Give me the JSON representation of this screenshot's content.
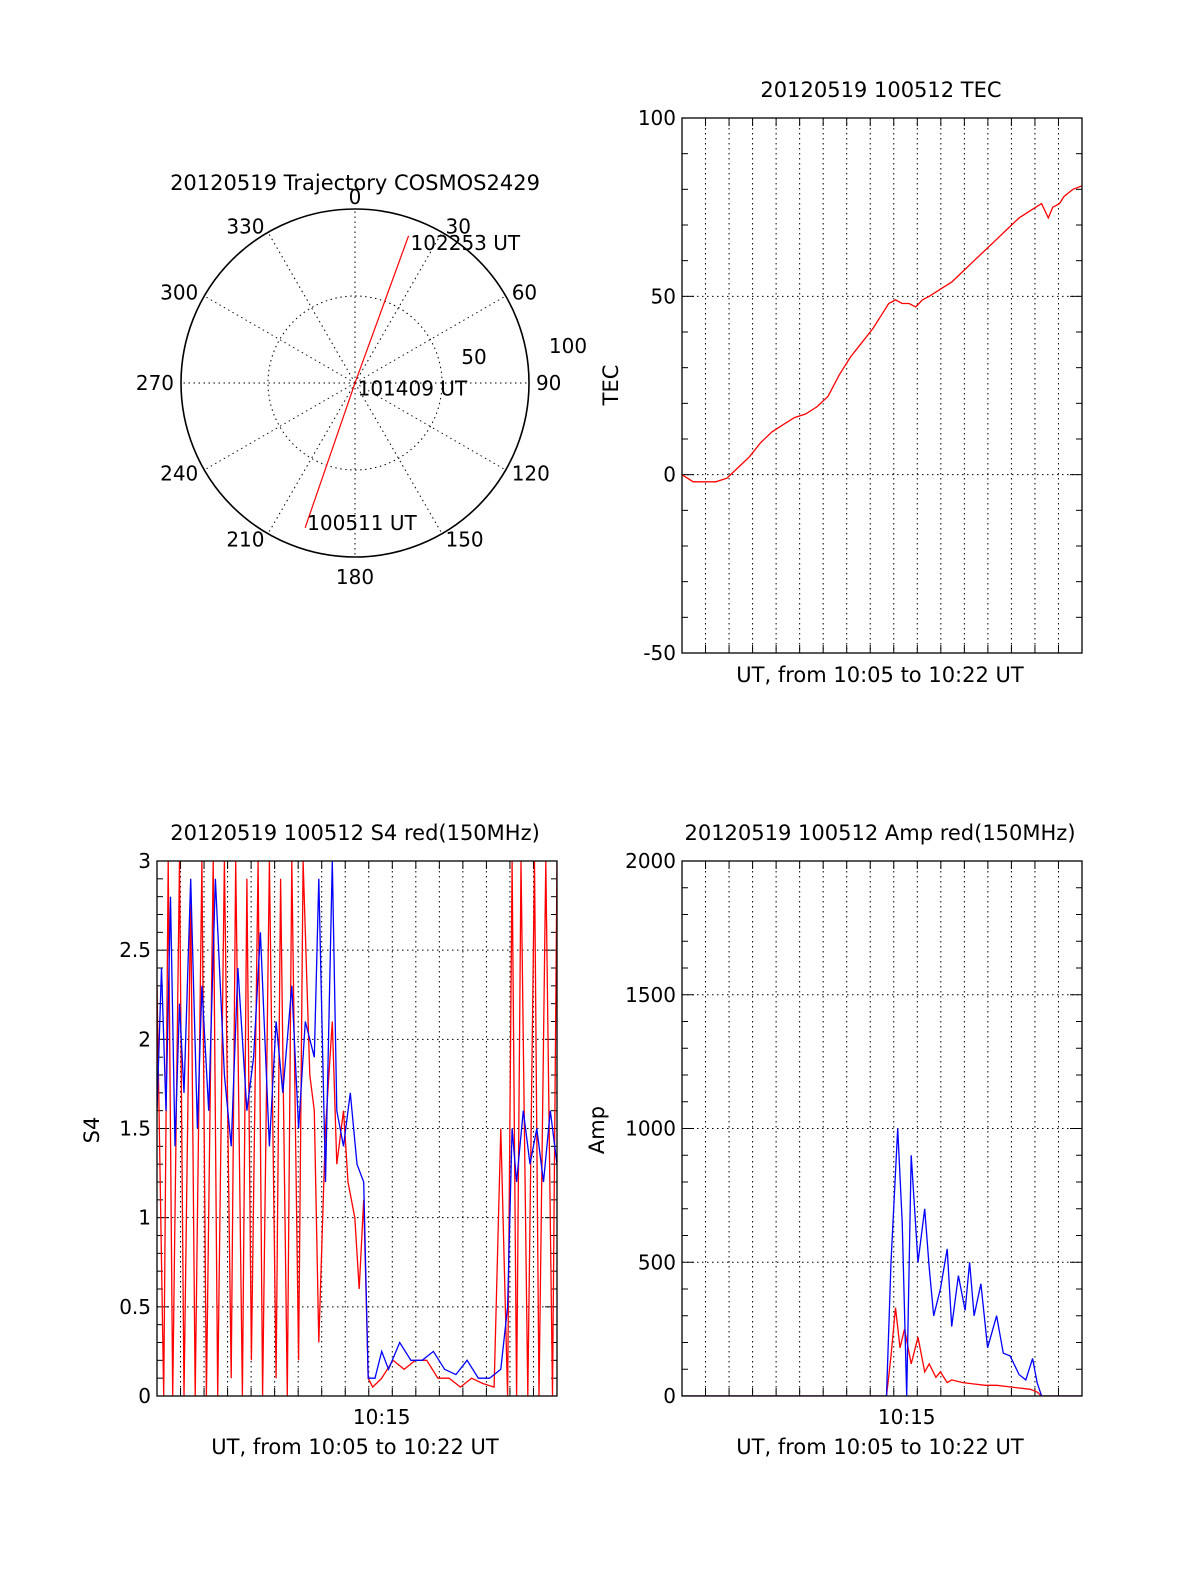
{
  "colors": {
    "red": "#ff0000",
    "blue": "#0000ff",
    "axis": "#000000"
  },
  "chart_data": [
    {
      "id": "trajectory",
      "type": "scatter",
      "title": "20120519 Trajectory COSMOS2429",
      "coordinate_system": "polar",
      "azimuth_labels": [
        "0",
        "30",
        "60",
        "90",
        "120",
        "150",
        "180",
        "210",
        "240",
        "270",
        "300",
        "330"
      ],
      "radius_labels": [
        "50",
        "100"
      ],
      "rlim": [
        0,
        100
      ],
      "grid": true,
      "series": [
        {
          "color": "#ff0000",
          "points": [
            {
              "az": 199,
              "r": 88,
              "label": "100511 UT"
            },
            {
              "az": 20,
              "r": 1,
              "label": "101409 UT"
            },
            {
              "az": 20,
              "r": 90,
              "label": "102253 UT"
            }
          ]
        }
      ]
    },
    {
      "id": "tec",
      "type": "line",
      "title": "20120519 100512 TEC",
      "xlabel": "UT, from 10:05 to 10:22 UT",
      "ylabel": "TEC",
      "xlim": [
        0,
        17.8
      ],
      "ylim": [
        -50,
        100
      ],
      "yticks": [
        "100",
        "50",
        "0",
        "-50"
      ],
      "xticks": [],
      "grid": true,
      "series": [
        {
          "color": "#ff0000",
          "x": [
            0,
            0.5,
            1,
            1.5,
            2,
            2.5,
            3,
            3.5,
            4,
            4.5,
            5,
            5.5,
            6,
            6.5,
            7,
            7.5,
            8,
            8.5,
            8.9,
            9.2,
            9.5,
            9.8,
            10.1,
            10.4,
            10.7,
            11,
            11.5,
            12,
            12.5,
            13,
            13.5,
            14,
            14.5,
            15,
            15.5,
            16,
            16.3,
            16.5,
            16.8,
            17,
            17.4,
            17.8
          ],
          "y": [
            0,
            -2,
            -2,
            -2,
            -1,
            2,
            5,
            9,
            12,
            14,
            16,
            17,
            19,
            22,
            28,
            33,
            37,
            41,
            45,
            48,
            49,
            48,
            48,
            47,
            49,
            50,
            52,
            54,
            57,
            60,
            63,
            66,
            69,
            72,
            74,
            76,
            72,
            75,
            76,
            78,
            80,
            81
          ]
        }
      ]
    },
    {
      "id": "s4",
      "type": "line",
      "title": "20120519 100512 S4 red(150MHz)",
      "xlabel": "UT, from 10:05 to 10:22 UT",
      "ylabel": "S4",
      "xlim": [
        0,
        17.8
      ],
      "ylim": [
        0,
        3
      ],
      "yticks": [
        "3",
        "2.5",
        "2",
        "1.5",
        "1",
        "0.5",
        "0"
      ],
      "xticks": [
        {
          "x": 10,
          "label": "10:15"
        }
      ],
      "grid": true,
      "series": [
        {
          "color": "#ff0000",
          "x": [
            0,
            0.3,
            0.5,
            0.7,
            1,
            1.2,
            1.5,
            1.7,
            2,
            2.2,
            2.5,
            2.7,
            3,
            3.3,
            3.5,
            3.8,
            4,
            4.2,
            4.5,
            4.7,
            5,
            5.3,
            5.5,
            5.8,
            6,
            6.3,
            6.5,
            6.8,
            7,
            7.2,
            7.5,
            7.8,
            8,
            8.3,
            8.5,
            8.8,
            9,
            9.2,
            9.4,
            9.6,
            10,
            10.5,
            11,
            11.5,
            12,
            12.5,
            13,
            13.5,
            14,
            14.5,
            15,
            15.3,
            15.6,
            15.8,
            16,
            16.2,
            16.5,
            16.8,
            17,
            17.3,
            17.6,
            17.8
          ],
          "y": [
            2.3,
            0,
            3,
            0,
            3,
            0,
            2.8,
            0,
            3,
            0,
            3,
            0,
            3,
            0.1,
            3,
            0,
            2.9,
            0.2,
            3,
            0,
            3,
            0.1,
            2.9,
            0,
            3,
            0.2,
            3,
            1.8,
            1.6,
            0.3,
            1.5,
            2.1,
            1.3,
            1.6,
            1.2,
            1.0,
            0.6,
            1.1,
            0.1,
            0.05,
            0.1,
            0.2,
            0.15,
            0.2,
            0.2,
            0.1,
            0.1,
            0.05,
            0.1,
            0.07,
            0.05,
            1.5,
            0,
            3,
            0,
            3,
            0,
            3,
            0,
            3,
            0,
            3
          ]
        },
        {
          "color": "#0000ff",
          "x": [
            0,
            0.2,
            0.4,
            0.6,
            0.8,
            1,
            1.2,
            1.5,
            1.8,
            2,
            2.3,
            2.6,
            3,
            3.3,
            3.6,
            4,
            4.3,
            4.6,
            5,
            5.3,
            5.6,
            6,
            6.3,
            6.6,
            7,
            7.2,
            7.5,
            7.8,
            8,
            8.3,
            8.6,
            8.9,
            9.2,
            9.4,
            9.7,
            10,
            10.3,
            10.8,
            11.3,
            11.8,
            12.3,
            12.8,
            13.3,
            13.8,
            14.3,
            14.8,
            15.3,
            15.6,
            15.8,
            16,
            16.3,
            16.6,
            16.9,
            17.2,
            17.5,
            17.8
          ],
          "y": [
            1.6,
            2.4,
            1.6,
            2.8,
            1.4,
            2.2,
            1.7,
            2.9,
            1.5,
            2.3,
            1.6,
            2.9,
            1.8,
            1.4,
            2.4,
            1.6,
            1.9,
            2.6,
            1.4,
            2.1,
            1.7,
            2.3,
            1.5,
            2.1,
            1.9,
            2.9,
            1.2,
            3,
            1.6,
            1.4,
            1.7,
            1.3,
            1.2,
            0.1,
            0.1,
            0.25,
            0.15,
            0.3,
            0.2,
            0.2,
            0.25,
            0.15,
            0.12,
            0.2,
            0.1,
            0.1,
            0.15,
            0.5,
            1.5,
            1.2,
            1.6,
            1.3,
            1.5,
            1.2,
            1.6,
            1.3
          ]
        }
      ]
    },
    {
      "id": "amp",
      "type": "line",
      "title": "20120519 100512 Amp red(150MHz)",
      "xlabel": "UT, from 10:05 to 10:22 UT",
      "ylabel": "Amp",
      "xlim": [
        0,
        17.8
      ],
      "ylim": [
        0,
        2000
      ],
      "yticks": [
        "2000",
        "1500",
        "1000",
        "500",
        "0"
      ],
      "xticks": [
        {
          "x": 10,
          "label": "10:15"
        }
      ],
      "grid": true,
      "series": [
        {
          "color": "#ff0000",
          "x": [
            0,
            9.1,
            9.3,
            9.5,
            9.7,
            9.9,
            10.2,
            10.5,
            10.8,
            11,
            11.3,
            11.5,
            11.8,
            12,
            12.5,
            13,
            13.5,
            14,
            14.5,
            15,
            15.5,
            15.8,
            16,
            17.8
          ],
          "y": [
            0,
            0,
            150,
            330,
            180,
            250,
            120,
            220,
            90,
            120,
            70,
            90,
            50,
            60,
            50,
            45,
            40,
            40,
            35,
            30,
            25,
            15,
            0,
            0
          ]
        },
        {
          "color": "#0000ff",
          "x": [
            0,
            9.1,
            9.3,
            9.6,
            9.8,
            10,
            10.2,
            10.5,
            10.8,
            11,
            11.2,
            11.5,
            11.8,
            12,
            12.3,
            12.6,
            12.8,
            13,
            13.3,
            13.6,
            14,
            14.3,
            14.6,
            15,
            15.3,
            15.6,
            15.8,
            16,
            17.8
          ],
          "y": [
            0,
            0,
            500,
            1000,
            650,
            0,
            900,
            500,
            700,
            480,
            300,
            400,
            550,
            260,
            450,
            320,
            500,
            300,
            420,
            180,
            300,
            160,
            150,
            80,
            60,
            140,
            50,
            0,
            0
          ]
        }
      ]
    }
  ]
}
